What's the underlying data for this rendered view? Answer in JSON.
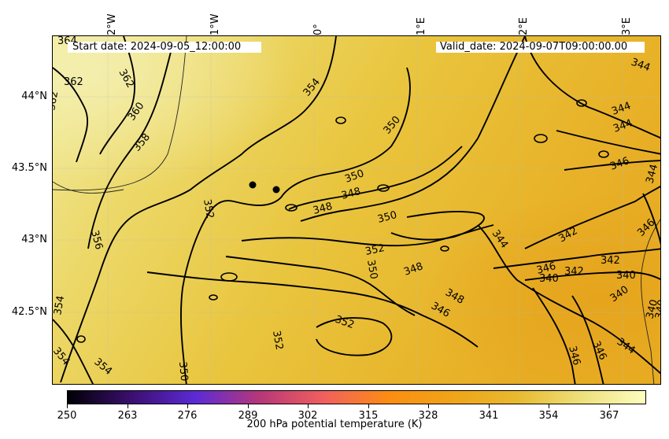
{
  "map": {
    "start_date": "Start date: 2024-09-05_12:00:00",
    "valid_date": "Valid_date: 2024-09-07T09:00:00.00",
    "lon_labels": [
      "2°W",
      "1°W",
      "0°",
      "1°E",
      "2°E",
      "3°E"
    ],
    "lat_labels": [
      "44°N",
      "43.5°N",
      "43°N",
      "42.5°N"
    ],
    "contour_labels": [
      "364",
      "362",
      "362",
      "362",
      "360",
      "358",
      "354",
      "350",
      "350",
      "348",
      "348",
      "350",
      "352",
      "352",
      "350",
      "348",
      "348",
      "346",
      "352",
      "352",
      "350",
      "356",
      "354",
      "354",
      "354",
      "344",
      "344",
      "344",
      "346",
      "344",
      "346",
      "342",
      "342",
      "344",
      "346",
      "342",
      "340",
      "340",
      "340",
      "340",
      "346",
      "346",
      "344",
      "340"
    ],
    "markers": [
      "point-1",
      "point-2"
    ]
  },
  "colorbar": {
    "title": "200 hPa potential temperature (K)",
    "ticks": [
      "250",
      "263",
      "276",
      "289",
      "302",
      "315",
      "328",
      "341",
      "354",
      "367"
    ],
    "colormap": [
      "#000004",
      "#3b0f70",
      "#5c2bd6",
      "#b73779",
      "#f1605d",
      "#fc8d12",
      "#f0a419",
      "#e8b92f",
      "#ede07a",
      "#fcfdbf"
    ]
  }
}
